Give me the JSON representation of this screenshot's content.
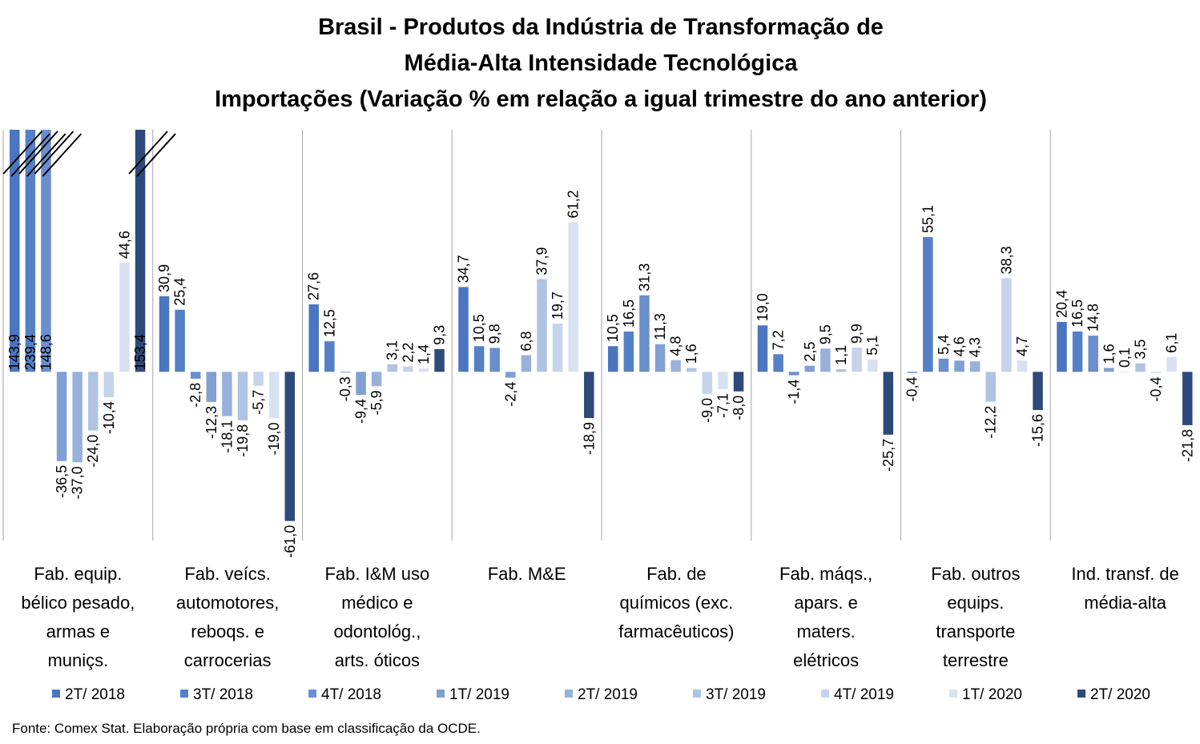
{
  "chart_data": {
    "type": "bar",
    "title": [
      "Brasil - Produtos da Indústria de Transformação de",
      "Média-Alta Intensidade Tecnológica",
      "Importações (Variação % em relação a igual trimestre do ano anterior)"
    ],
    "categories": [
      "Fab. equip.\nbélico pesado,\narmas e\nmuniçs.",
      "Fab. veícs.\nautomotores,\nreboqs. e\ncarrocerias",
      "Fab. I&M uso\nmédico e\nodontológ.,\narts. óticos",
      "Fab. M&E",
      "Fab. de\nquímicos (exc.\nfarmacêuticos)",
      "Fab. máqs.,\napars. e\nmaters.\nelétricos",
      "Fab. outros\nequips.\ntransporte\nterrestre",
      "Ind. transf. de\nmédia-alta"
    ],
    "series": [
      {
        "name": "2T/ 2018",
        "color": "#4a76c0",
        "values": [
          143.9,
          30.9,
          27.6,
          34.7,
          10.5,
          19.0,
          -0.4,
          20.4
        ],
        "value_labels": [
          "143,9",
          "30,9",
          "27,6",
          "34,7",
          "10,5",
          "19,0",
          "-0,4",
          "20,4"
        ]
      },
      {
        "name": "3T/ 2018",
        "color": "#5480c6",
        "values": [
          239.4,
          25.4,
          12.5,
          10.5,
          16.5,
          7.2,
          55.1,
          16.5
        ],
        "value_labels": [
          "239,4",
          "25,4",
          "12,5",
          "10,5",
          "16,5",
          "7,2",
          "55,1",
          "16,5"
        ]
      },
      {
        "name": "4T/ 2018",
        "color": "#6a8fcc",
        "values": [
          148.6,
          -2.8,
          -0.3,
          9.8,
          31.3,
          -1.4,
          5.4,
          14.8
        ],
        "value_labels": [
          "148,6",
          "-2,8",
          "-0,3",
          "9,8",
          "31,3",
          "-1,4",
          "5,4",
          "14,8"
        ]
      },
      {
        "name": "1T/ 2019",
        "color": "#809fd3",
        "values": [
          -36.5,
          -12.3,
          -9.4,
          -2.4,
          11.3,
          2.5,
          4.6,
          1.6
        ],
        "value_labels": [
          "-36,5",
          "-12,3",
          "-9,4",
          "-2,4",
          "11,3",
          "2,5",
          "4,6",
          "1,6"
        ]
      },
      {
        "name": "2T/ 2019",
        "color": "#98b1da",
        "values": [
          -37.0,
          -18.1,
          -5.9,
          6.8,
          4.8,
          9.5,
          4.3,
          0.1
        ],
        "value_labels": [
          "-37,0",
          "-18,1",
          "-5,9",
          "6,8",
          "4,8",
          "9,5",
          "4,3",
          "0,1"
        ]
      },
      {
        "name": "3T/ 2019",
        "color": "#afc3e3",
        "values": [
          -24.0,
          -19.8,
          3.1,
          37.9,
          1.6,
          1.1,
          -12.2,
          3.5
        ],
        "value_labels": [
          "-24,0",
          "-19,8",
          "3,1",
          "37,9",
          "1,6",
          "1,1",
          "-12,2",
          "3,5"
        ]
      },
      {
        "name": "4T/ 2019",
        "color": "#c5d3eb",
        "values": [
          -10.4,
          -5.7,
          2.2,
          19.7,
          -9.0,
          9.9,
          38.3,
          -0.4
        ],
        "value_labels": [
          "-10,4",
          "-5,7",
          "2,2",
          "19,7",
          "-9,0",
          "9,9",
          "38,3",
          "-0,4"
        ]
      },
      {
        "name": "1T/ 2020",
        "color": "#d8e1f1",
        "values": [
          44.6,
          -19.0,
          1.4,
          61.2,
          -7.1,
          5.1,
          4.7,
          6.1
        ],
        "value_labels": [
          "44,6",
          "-19,0",
          "1,4",
          "61,2",
          "-7,1",
          "5,1",
          "4,7",
          "6,1"
        ]
      },
      {
        "name": "2T/ 2020",
        "color": "#2e4a7a",
        "values": [
          153.4,
          -61.0,
          9.3,
          -18.9,
          -8.0,
          -25.7,
          -15.6,
          -21.8
        ],
        "value_labels": [
          "153,4",
          "-61,0",
          "9,3",
          "-18,9",
          "-8,0",
          "-25,7",
          "-15,6",
          "-21,8"
        ]
      }
    ],
    "ylim": [
      -69,
      99
    ],
    "source": "Fonte: Comex Stat. Elaboração própria com base em classificação da OCDE."
  }
}
